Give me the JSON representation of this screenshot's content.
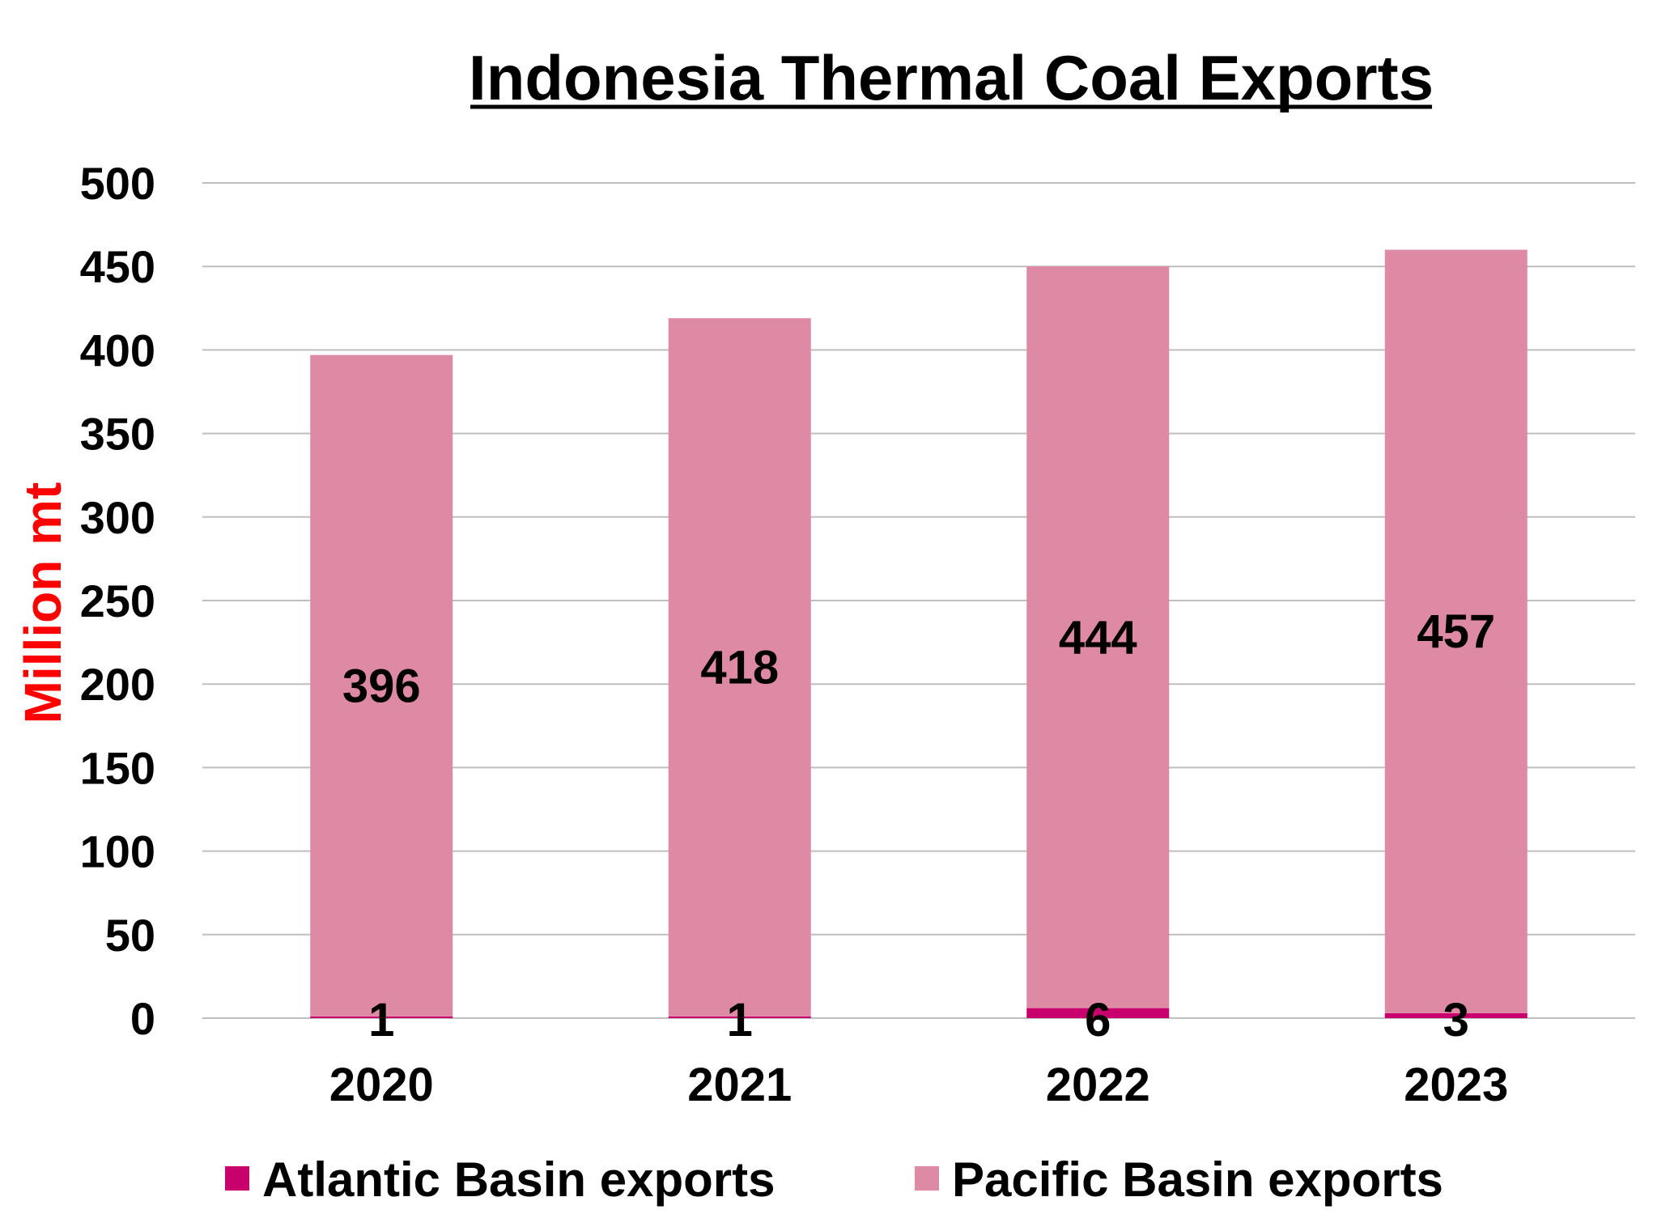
{
  "chart_data": {
    "type": "bar",
    "stacked": true,
    "title": "Indonesia Thermal Coal Exports",
    "xlabel": "",
    "ylabel": "Million mt",
    "ylim": [
      0,
      500
    ],
    "yticks": [
      0,
      50,
      100,
      150,
      200,
      250,
      300,
      350,
      400,
      450,
      500
    ],
    "grid": true,
    "legend_position": "bottom",
    "categories": [
      "2020",
      "2021",
      "2022",
      "2023"
    ],
    "series": [
      {
        "name": "Atlantic Basin exports",
        "values": [
          1,
          1,
          6,
          3
        ],
        "color": "#C8006E"
      },
      {
        "name": "Pacific Basin exports",
        "values": [
          396,
          418,
          444,
          457
        ],
        "color": "#DE8AA5"
      }
    ],
    "colors": {
      "gridline": "#BFBFBF",
      "ylabel": "#FF0000",
      "text": "#000000"
    }
  }
}
